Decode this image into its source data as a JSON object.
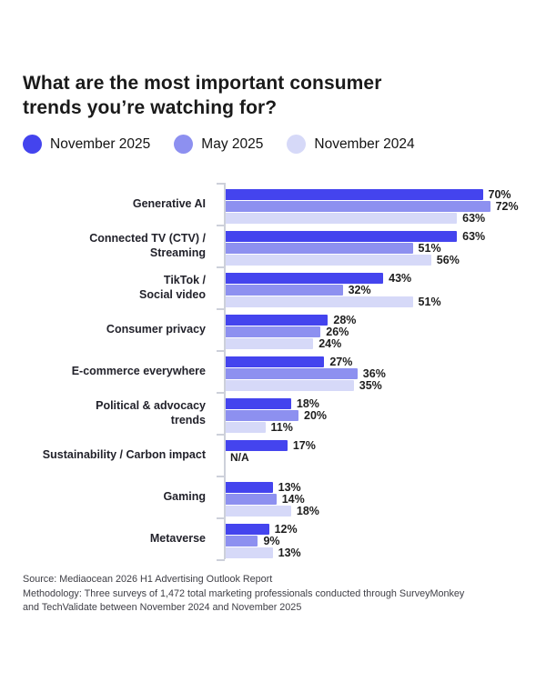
{
  "header": {
    "title": "What are the most important consumer trends you’re watching for?"
  },
  "chart_data": {
    "type": "bar",
    "orientation": "horizontal",
    "title": "What are the most important consumer trends you’re watching for?",
    "legend_position": "top",
    "value_suffix": "%",
    "grid": false,
    "series_names": [
      "November 2025",
      "May 2025",
      "November 2024"
    ],
    "series_colors": [
      "#4444ee",
      "#8d90f0",
      "#d6d9f8"
    ],
    "categories": [
      "Generative AI",
      "Connected TV (CTV) / Streaming",
      "TikTok / Social video",
      "Consumer privacy",
      "E-commerce everywhere",
      "Political & advocacy trends",
      "Sustainability / Carbon impact",
      "Gaming",
      "Metaverse"
    ],
    "category_label_lines": [
      [
        "Generative AI"
      ],
      [
        "Connected TV (CTV) /",
        "Streaming"
      ],
      [
        "TikTok /",
        "Social video"
      ],
      [
        "Consumer privacy"
      ],
      [
        "E-commerce everywhere"
      ],
      [
        "Political & advocacy",
        "trends"
      ],
      [
        "Sustainability / Carbon impact"
      ],
      [
        "Gaming"
      ],
      [
        "Metaverse"
      ]
    ],
    "values": [
      [
        70,
        72,
        63
      ],
      [
        63,
        51,
        56
      ],
      [
        43,
        32,
        51
      ],
      [
        28,
        26,
        24
      ],
      [
        27,
        36,
        35
      ],
      [
        18,
        20,
        11
      ],
      [
        17,
        "N/A",
        null
      ],
      [
        13,
        14,
        18
      ],
      [
        12,
        9,
        13
      ]
    ],
    "na_text": "N/A",
    "axis_color": "#cdd0da"
  },
  "footer": {
    "lines": [
      "Source: Mediaocean 2026 H1 Advertising Outlook Report",
      "Methodology: Three surveys of 1,472 total marketing professionals conducted through SurveyMonkey",
      "and TechValidate between November 2024 and November 2025"
    ]
  }
}
